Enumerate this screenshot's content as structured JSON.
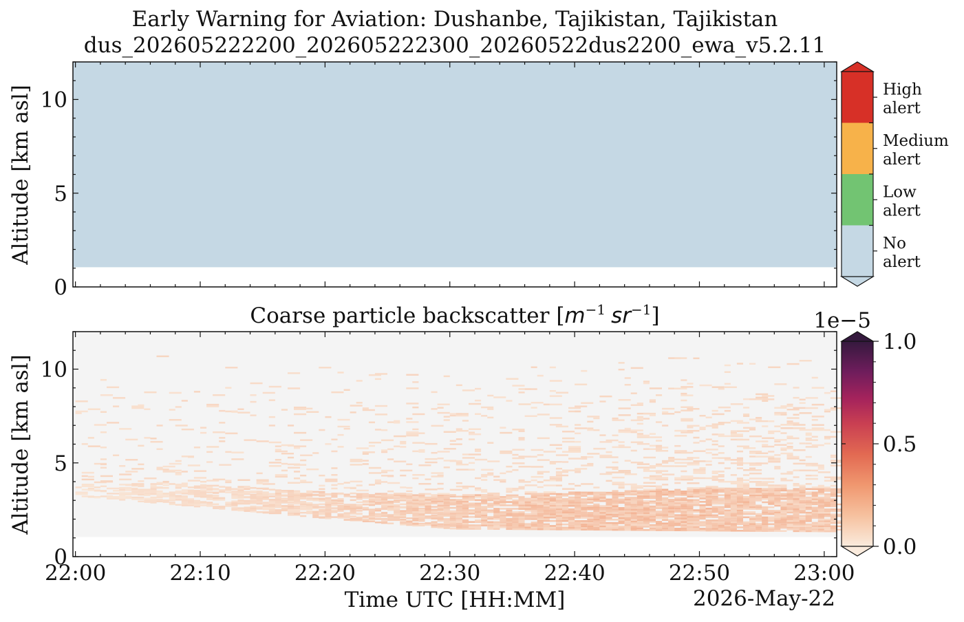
{
  "chart_data": [
    {
      "type": "heatmap",
      "title": "Early Warning for Aviation: Dushanbe, Tajikistan, Tajikistan",
      "subtitle": "dus_202605222200_202605222300_20260522dus2200_ewa_v5.2.11",
      "ylabel": "Altitude [km asl]",
      "ylim": [
        0,
        12
      ],
      "yticks": [
        "0",
        "5",
        "10"
      ],
      "xlim": [
        "22:00",
        "23:01"
      ],
      "field": {
        "value": "No alert",
        "altitude_min_km": 1.05,
        "altitude_max_km": 12
      },
      "colorbar": {
        "categories": [
          "No alert",
          "Low alert",
          "Medium alert",
          "High alert"
        ],
        "labels": [
          {
            "line1": "High",
            "line2": "alert"
          },
          {
            "line1": "Medium",
            "line2": "alert"
          },
          {
            "line1": "Low",
            "line2": "alert"
          },
          {
            "line1": "No",
            "line2": "alert"
          }
        ],
        "colors": [
          "#c5d8e4",
          "#72c472",
          "#f7b24a",
          "#d73027"
        ]
      }
    },
    {
      "type": "heatmap",
      "title_text": "Coarse particle backscatter [",
      "title_math": "m",
      "title_sup1": "−1",
      "title_math2": "sr",
      "title_sup2": "−1",
      "title_end": "]",
      "xlabel": "Time UTC [HH:MM]",
      "date_label": "2026-May-22",
      "ylabel": "Altitude [km asl]",
      "ylim": [
        0,
        12
      ],
      "yticks": [
        "0",
        "5",
        "10"
      ],
      "xticks": [
        "22:00",
        "22:10",
        "22:20",
        "22:30",
        "22:40",
        "22:50",
        "23:00"
      ],
      "xlim_minutes": [
        -0.2,
        61.0
      ],
      "data_floor_km": 1.05,
      "colorbar": {
        "min": 0,
        "max": 1e-05,
        "exponent_label": "1e−5",
        "ticks": [
          "0.0",
          "0.5",
          "1.0"
        ],
        "colormap": "rocket_r"
      },
      "layer_profile": [
        {
          "minute": 0,
          "bottom_km": 3.2,
          "top_km": 3.8,
          "intensity": 0.03
        },
        {
          "minute": 10,
          "bottom_km": 2.6,
          "top_km": 3.8,
          "intensity": 0.05
        },
        {
          "minute": 20,
          "bottom_km": 2.0,
          "top_km": 3.4,
          "intensity": 0.08
        },
        {
          "minute": 30,
          "bottom_km": 1.45,
          "top_km": 3.2,
          "intensity": 0.11
        },
        {
          "minute": 40,
          "bottom_km": 1.4,
          "top_km": 3.4,
          "intensity": 0.13
        },
        {
          "minute": 50,
          "bottom_km": 1.35,
          "top_km": 3.6,
          "intensity": 0.13
        },
        {
          "minute": 61,
          "bottom_km": 1.3,
          "top_km": 3.6,
          "intensity": 0.12
        }
      ]
    }
  ]
}
